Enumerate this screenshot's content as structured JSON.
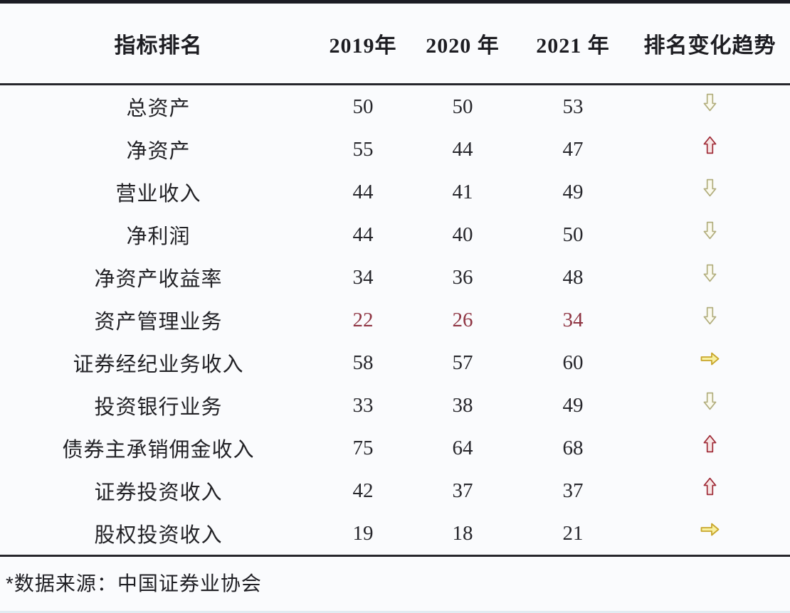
{
  "table": {
    "header": {
      "indicator": "指标排名",
      "y2019": "2019年",
      "y2020": "2020 年",
      "y2021": "2021 年",
      "trend": "排名变化趋势"
    },
    "rows": [
      {
        "label": "总资产",
        "v2019": "50",
        "v2020": "50",
        "v2021": "53",
        "trend": "down",
        "highlight": false
      },
      {
        "label": "净资产",
        "v2019": "55",
        "v2020": "44",
        "v2021": "47",
        "trend": "up",
        "highlight": false
      },
      {
        "label": "营业收入",
        "v2019": "44",
        "v2020": "41",
        "v2021": "49",
        "trend": "down",
        "highlight": false
      },
      {
        "label": "净利润",
        "v2019": "44",
        "v2020": "40",
        "v2021": "50",
        "trend": "down",
        "highlight": false
      },
      {
        "label": "净资产收益率",
        "v2019": "34",
        "v2020": "36",
        "v2021": "48",
        "trend": "down",
        "highlight": false
      },
      {
        "label": "资产管理业务",
        "v2019": "22",
        "v2020": "26",
        "v2021": "34",
        "trend": "down",
        "highlight": true
      },
      {
        "label": "证券经纪业务收入",
        "v2019": "58",
        "v2020": "57",
        "v2021": "60",
        "trend": "flat",
        "highlight": false
      },
      {
        "label": "投资银行业务",
        "v2019": "33",
        "v2020": "38",
        "v2021": "49",
        "trend": "down",
        "highlight": false
      },
      {
        "label": "债券主承销佣金收入",
        "v2019": "75",
        "v2020": "64",
        "v2021": "68",
        "trend": "up",
        "highlight": false
      },
      {
        "label": "证券投资收入",
        "v2019": "42",
        "v2020": "37",
        "v2021": "37",
        "trend": "up",
        "highlight": false
      },
      {
        "label": "股权投资收入",
        "v2019": "19",
        "v2020": "18",
        "v2021": "21",
        "trend": "flat",
        "highlight": false
      }
    ],
    "footer_note": "*数据来源：中国证券业协会"
  },
  "colors": {
    "background": "#fafbfd",
    "top_strip": "#1c1c24",
    "rule_line": "#26262c",
    "highlight_text": "#8f3543",
    "arrow_up_stroke": "#a02c38",
    "arrow_up_fill": "#f7e7e6",
    "arrow_down_stroke": "#b2ae7e",
    "arrow_down_fill": "#fbfaee",
    "arrow_flat_stroke": "#c8a62b",
    "arrow_flat_fill": "#f8f0a0"
  },
  "chart_data": {
    "type": "table",
    "title": "指标排名",
    "columns": [
      "指标排名",
      "2019年",
      "2020年",
      "2021年",
      "排名变化趋势"
    ],
    "rows": [
      [
        "总资产",
        50,
        50,
        53,
        "下降"
      ],
      [
        "净资产",
        55,
        44,
        47,
        "上升"
      ],
      [
        "营业收入",
        44,
        41,
        49,
        "下降"
      ],
      [
        "净利润",
        44,
        40,
        50,
        "下降"
      ],
      [
        "净资产收益率",
        34,
        36,
        48,
        "下降"
      ],
      [
        "资产管理业务",
        22,
        26,
        34,
        "下降"
      ],
      [
        "证券经纪业务收入",
        58,
        57,
        60,
        "持平"
      ],
      [
        "投资银行业务",
        33,
        38,
        49,
        "下降"
      ],
      [
        "债券主承销佣金收入",
        75,
        64,
        68,
        "上升"
      ],
      [
        "证券投资收入",
        42,
        37,
        37,
        "上升"
      ],
      [
        "股权投资收入",
        19,
        18,
        21,
        "持平"
      ]
    ],
    "notes": "*数据来源：中国证券业协会",
    "legend": {
      "up": "红色空心上箭头",
      "down": "橄榄色空心下箭头",
      "flat": "黄色右箭头"
    }
  }
}
